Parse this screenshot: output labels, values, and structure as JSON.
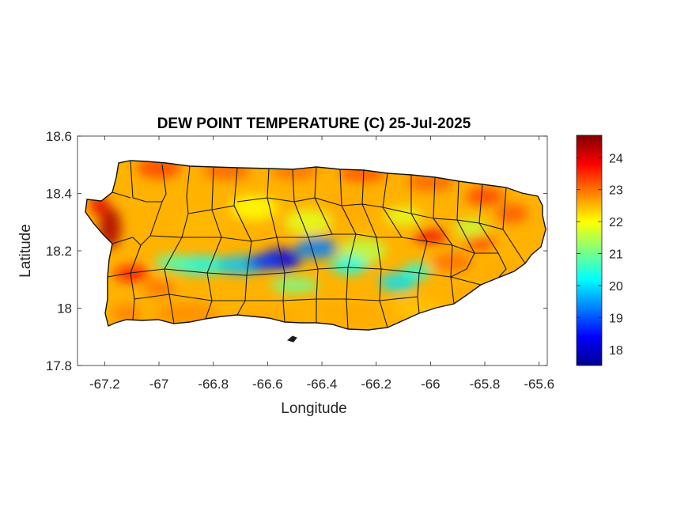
{
  "chart_data": {
    "type": "heatmap",
    "title": "DEW POINT TEMPERATURE (C) 25-Jul-2025",
    "xlabel": "Longitude",
    "ylabel": "Latitude",
    "xlim": [
      -67.3,
      -65.57
    ],
    "ylim": [
      17.8,
      18.6
    ],
    "xticks": [
      -67.2,
      -67,
      -66.8,
      -66.6,
      -66.4,
      -66.2,
      -66,
      -65.8,
      -65.6
    ],
    "xtick_labels": [
      "-67.2",
      "-67",
      "-66.8",
      "-66.6",
      "-66.4",
      "-66.2",
      "-66",
      "-65.8",
      "-65.6"
    ],
    "yticks": [
      17.8,
      18,
      18.2,
      18.4,
      18.6
    ],
    "ytick_labels": [
      "17.8",
      "18",
      "18.2",
      "18.4",
      "18.6"
    ],
    "colorbar": {
      "range": [
        17.5,
        24.7
      ],
      "ticks": [
        18,
        19,
        20,
        21,
        22,
        23,
        24
      ],
      "tick_labels": [
        "18",
        "19",
        "20",
        "21",
        "22",
        "23",
        "24"
      ],
      "colormap": "jet"
    },
    "features": {
      "min_region": {
        "lon": -66.55,
        "lat": 18.17,
        "value": 18
      },
      "max_region": {
        "lon": -67.17,
        "lat": 18.27,
        "value": 24.5
      },
      "central_band_value": 20,
      "coastal_value": 23
    }
  }
}
